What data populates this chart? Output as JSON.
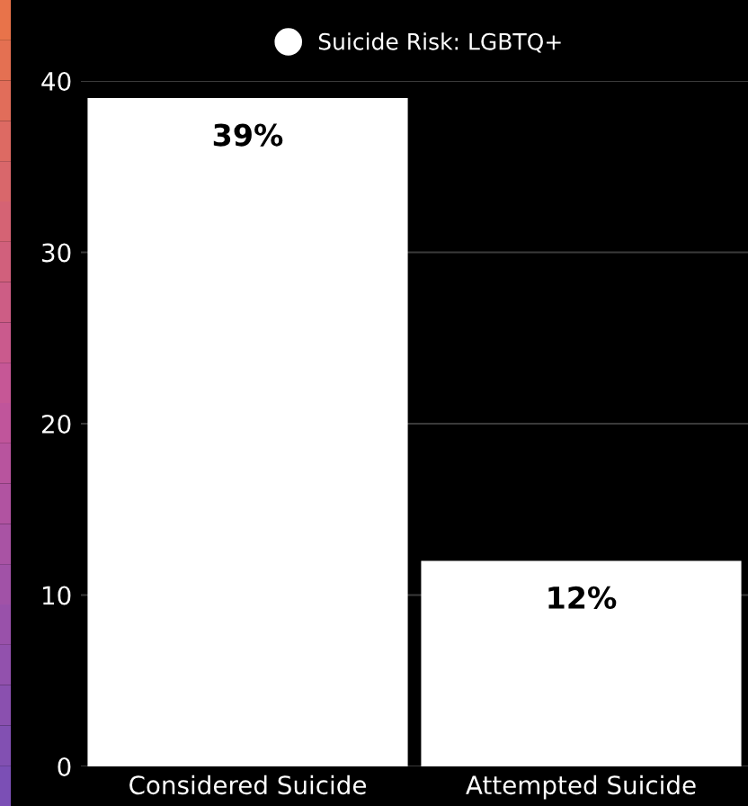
{
  "chart_data": {
    "type": "bar",
    "categories": [
      "Considered Suicide",
      "Attempted Suicide"
    ],
    "series": [
      {
        "name": "Suicide Risk: LGBTQ+",
        "color": "#ffffff",
        "values": [
          39,
          12
        ],
        "value_labels": [
          "39%",
          "12%"
        ]
      }
    ],
    "ylim": [
      0,
      40
    ],
    "yticks": [
      0,
      10,
      20,
      30,
      40
    ],
    "grid": "y",
    "legend": "top"
  }
}
